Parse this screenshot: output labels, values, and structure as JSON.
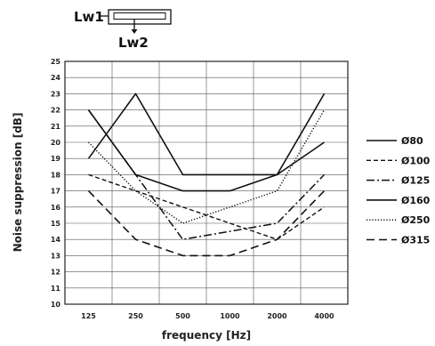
{
  "diagram": {
    "inlet_label": "Lw1",
    "outlet_label": "Lw2"
  },
  "chart_data": {
    "type": "line",
    "title": "",
    "xlabel": "frequency [Hz]",
    "ylabel": "Noise suppression [dB]",
    "categories": [
      "125",
      "250",
      "500",
      "1000",
      "2000",
      "4000"
    ],
    "ylim": [
      10,
      25
    ],
    "yticks": [
      10,
      11,
      12,
      13,
      14,
      15,
      16,
      17,
      18,
      19,
      20,
      21,
      22,
      23,
      24,
      25
    ],
    "grid": true,
    "legend_position": "right",
    "series": [
      {
        "name": "Ø80",
        "style": "solid",
        "values": [
          19,
          23,
          18,
          18,
          18,
          23
        ]
      },
      {
        "name": "Ø100",
        "style": "dash",
        "values": [
          18,
          17,
          16,
          15,
          14,
          16
        ]
      },
      {
        "name": "Ø125",
        "style": "dashdot",
        "values": [
          22,
          18,
          14,
          14.5,
          15,
          18
        ]
      },
      {
        "name": "Ø160",
        "style": "solid",
        "values": [
          22,
          18,
          17,
          17,
          18,
          20
        ]
      },
      {
        "name": "Ø250",
        "style": "dotted",
        "values": [
          20,
          17,
          15,
          16,
          17,
          22
        ]
      },
      {
        "name": "Ø315",
        "style": "longdash",
        "values": [
          17,
          14,
          13,
          13,
          14,
          17
        ]
      }
    ]
  }
}
